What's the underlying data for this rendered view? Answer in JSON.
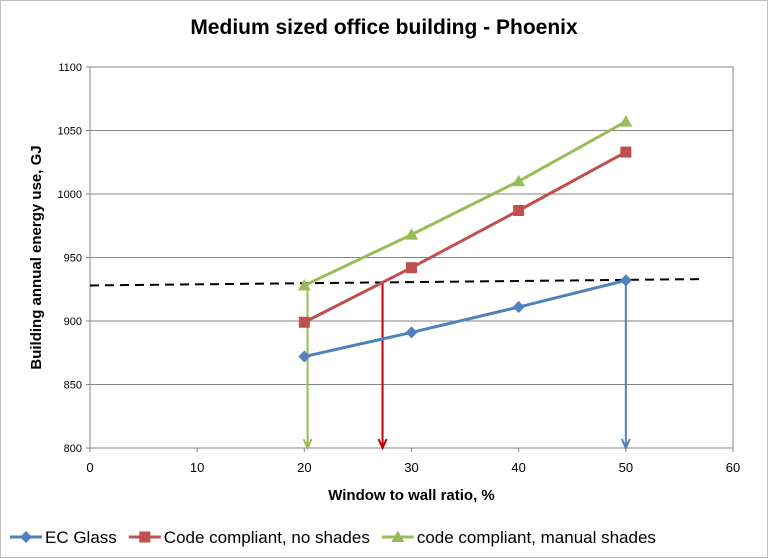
{
  "chart_data": {
    "type": "line",
    "title": "Medium sized office building - Phoenix",
    "xlabel": "Window to wall ratio, %",
    "ylabel": "Building annual energy use, GJ",
    "xlim": [
      0,
      60
    ],
    "ylim": [
      800,
      1100
    ],
    "xticks": [
      0,
      10,
      20,
      30,
      40,
      50,
      60
    ],
    "yticks": [
      800,
      850,
      900,
      950,
      1000,
      1050,
      1100
    ],
    "grid": "horizontal",
    "legend_position": "bottom",
    "series": [
      {
        "name": "EC Glass",
        "color": "#4f81bd",
        "marker": "diamond",
        "x": [
          20,
          30,
          40,
          50
        ],
        "y": [
          872,
          891,
          911,
          932
        ]
      },
      {
        "name": "Code compliant, no shades",
        "color": "#c0504d",
        "marker": "square",
        "x": [
          20,
          30,
          40,
          50
        ],
        "y": [
          899,
          942,
          987,
          1033
        ]
      },
      {
        "name": "code compliant, manual shades",
        "color": "#9bbb59",
        "marker": "triangle",
        "x": [
          20,
          30,
          40,
          50
        ],
        "y": [
          928,
          968,
          1010,
          1057
        ]
      }
    ],
    "reference_line": {
      "style": "dashed",
      "color": "#000000",
      "x": [
        0,
        57
      ],
      "y": [
        928,
        933
      ]
    },
    "arrows": [
      {
        "color": "#9bbb59",
        "x": 20.3,
        "y_from": 928,
        "y_to": 800
      },
      {
        "color": "#c00000",
        "x": 27.3,
        "y_from": 931,
        "y_to": 800
      },
      {
        "color": "#4f81bd",
        "x": 50,
        "y_from": 932,
        "y_to": 800
      }
    ]
  }
}
